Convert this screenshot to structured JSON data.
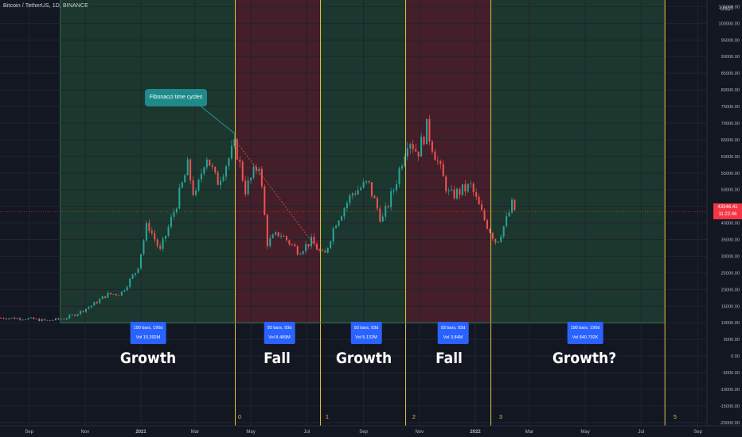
{
  "header": {
    "symbol_title": "Bitcoin / TetherUS, 1D, BINANCE",
    "currency": "USDT"
  },
  "annotation": {
    "callout_text": "Fibonacci time cycles"
  },
  "last_price": {
    "value": "43346.41",
    "countdown": "11:22:46"
  },
  "colors": {
    "background": "#131722",
    "growth_zone": "#1e3b2f",
    "fall_zone": "#4a1f2a",
    "cycle_line": "#e0c341",
    "up_candle": "#26a69a",
    "down_candle": "#ef5350",
    "label_box": "#2962ff",
    "price_tag": "#f23645",
    "callout": "#1f8a8a"
  },
  "zones": [
    {
      "type": "growth",
      "label": "Growth",
      "bars": "190 bars, 190d",
      "vol": "Vol 15.392M"
    },
    {
      "type": "fall",
      "label": "Fall",
      "bars": "93 bars, 93d",
      "vol": "Vol 8.489M"
    },
    {
      "type": "growth",
      "label": "Growth",
      "bars": "93 bars, 93d",
      "vol": "Vol 5.132M"
    },
    {
      "type": "fall",
      "label": "Fall",
      "bars": "93 bars, 93d",
      "vol": "Vol 3.84M"
    },
    {
      "type": "growth",
      "label": "Growth?",
      "bars": "190 bars, 190d",
      "vol": "Vol 840.792K"
    }
  ],
  "cycle_numbers": [
    "0",
    "1",
    "2",
    "3",
    "5"
  ],
  "chart_data": {
    "type": "candlestick",
    "title": "Bitcoin / TetherUS, 1D, BINANCE",
    "x_ticks": [
      "Sep",
      "Nov",
      "2021",
      "Mar",
      "May",
      "Jul",
      "Sep",
      "Nov",
      "2022",
      "Mar",
      "May",
      "Jul",
      "Sep"
    ],
    "y_ticks": [
      105000,
      100000,
      95000,
      90000,
      85000,
      80000,
      75000,
      70000,
      65000,
      60000,
      55000,
      50000,
      45000,
      40000,
      35000,
      30000,
      25000,
      20000,
      15000,
      10000,
      5000,
      0,
      -5000,
      -10000,
      -15000,
      -20000
    ],
    "ylim": [
      -21000,
      107000
    ],
    "y_tick_format": "0.00",
    "grid": true,
    "price_path": [
      [
        "2020-08-01",
        11500
      ],
      [
        "2020-09-01",
        11200
      ],
      [
        "2020-09-20",
        10600
      ],
      [
        "2020-10-10",
        11300
      ],
      [
        "2020-10-25",
        13000
      ],
      [
        "2020-11-10",
        15500
      ],
      [
        "2020-11-25",
        18500
      ],
      [
        "2020-12-10",
        18800
      ],
      [
        "2020-12-28",
        26000
      ],
      [
        "2021-01-08",
        40000
      ],
      [
        "2021-01-22",
        31500
      ],
      [
        "2021-02-08",
        45000
      ],
      [
        "2021-02-21",
        57000
      ],
      [
        "2021-03-01",
        47000
      ],
      [
        "2021-03-13",
        61000
      ],
      [
        "2021-03-25",
        52000
      ],
      [
        "2021-04-14",
        63500
      ],
      [
        "2021-04-25",
        50000
      ],
      [
        "2021-05-10",
        58000
      ],
      [
        "2021-05-19",
        34000
      ],
      [
        "2021-06-01",
        37000
      ],
      [
        "2021-06-22",
        31500
      ],
      [
        "2021-07-06",
        34500
      ],
      [
        "2021-07-20",
        29800
      ],
      [
        "2021-08-01",
        40000
      ],
      [
        "2021-08-20",
        49000
      ],
      [
        "2021-09-06",
        52000
      ],
      [
        "2021-09-21",
        40500
      ],
      [
        "2021-10-05",
        51000
      ],
      [
        "2021-10-20",
        66000
      ],
      [
        "2021-10-30",
        61000
      ],
      [
        "2021-11-09",
        68500
      ],
      [
        "2021-11-26",
        54000
      ],
      [
        "2021-12-04",
        48000
      ],
      [
        "2021-12-27",
        51000
      ],
      [
        "2022-01-10",
        41500
      ],
      [
        "2022-01-24",
        34000
      ],
      [
        "2022-02-05",
        41500
      ],
      [
        "2022-02-10",
        45500
      ],
      [
        "2022-02-14",
        43346
      ]
    ],
    "cycle_lines": [
      {
        "label": "0",
        "date": "2021-04-14"
      },
      {
        "label": "1",
        "date": "2021-07-16"
      },
      {
        "label": "2",
        "date": "2021-10-17"
      },
      {
        "label": "3",
        "date": "2022-01-18"
      },
      {
        "label": "5",
        "date": "2022-07-27"
      }
    ],
    "zone_start": "2020-10-05",
    "trendline": {
      "from": [
        "2021-04-14",
        64800
      ],
      "to": [
        "2021-07-16",
        31000
      ]
    },
    "last_price_line": 43346.41
  }
}
